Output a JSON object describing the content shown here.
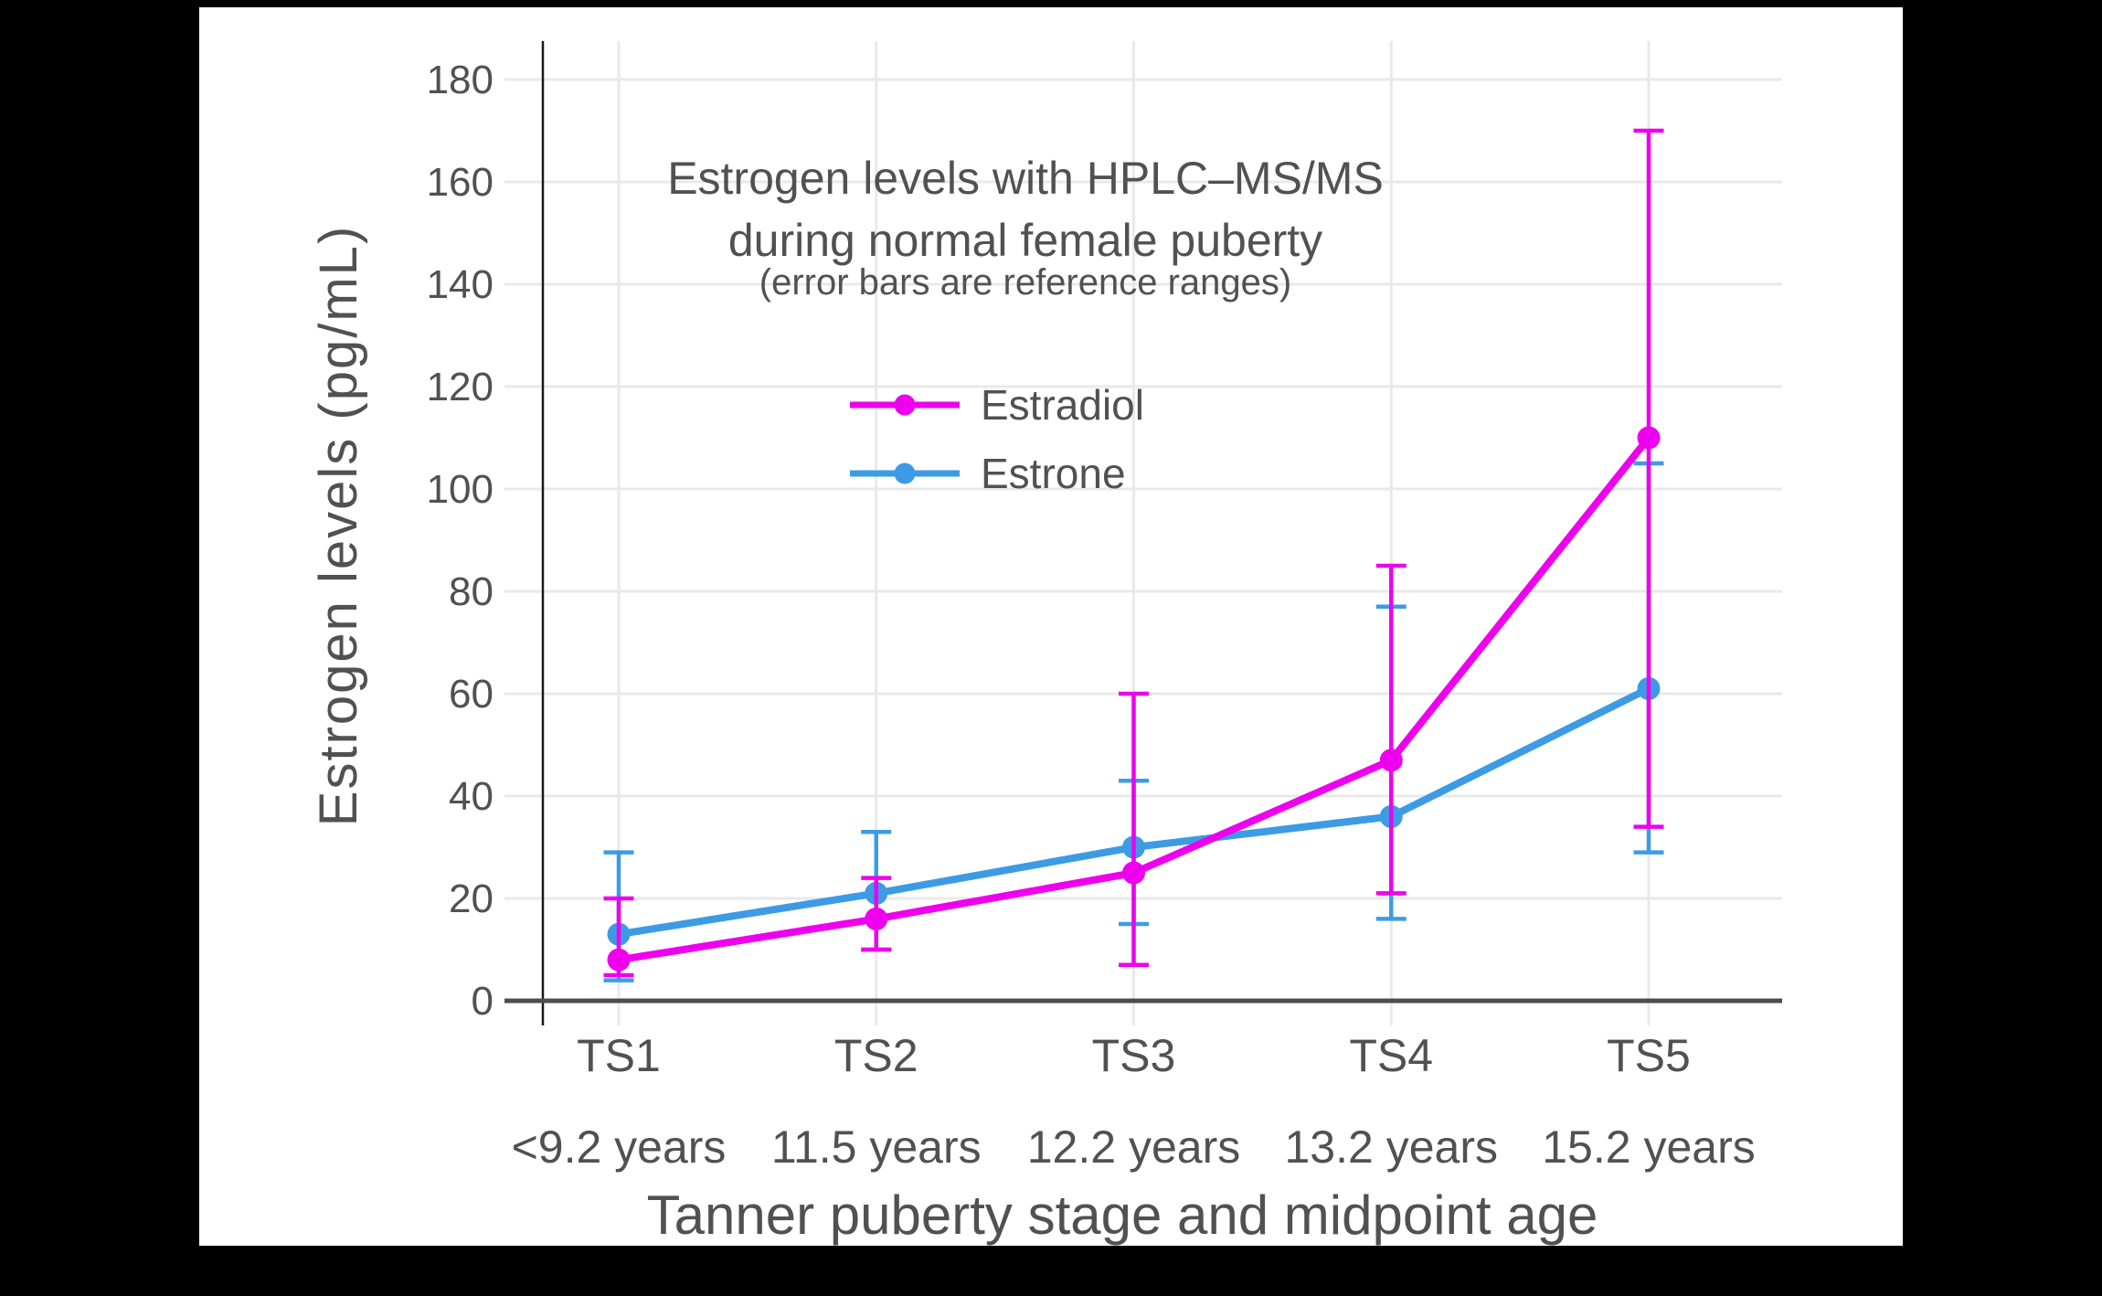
{
  "colors": {
    "background": "#000000",
    "canvas": "#ffffff",
    "text": "#515151",
    "grid": "#e9e9e9",
    "x_axis": "#4d4d4d",
    "y_axis": "#1a1a1a",
    "estradiol": "#EE00EE",
    "estrone": "#3D9BE5"
  },
  "chart_data": {
    "type": "line",
    "title_lines": [
      "Estrogen levels with HPLC–MS/MS",
      "during normal female puberty"
    ],
    "subtitle": "(error bars are reference ranges)",
    "xlabel": "Tanner puberty stage and midpoint age",
    "ylabel": "Estrogen levels (pg/mL)",
    "categories": [
      "TS1",
      "TS2",
      "TS3",
      "TS4",
      "TS5"
    ],
    "category_sublabels": [
      "<9.2 years",
      "11.5 years",
      "12.2 years",
      "13.2 years",
      "15.2 years"
    ],
    "y_ticks": [
      0,
      20,
      40,
      60,
      80,
      100,
      120,
      140,
      160,
      180
    ],
    "ylim": [
      0,
      187
    ],
    "grid": true,
    "legend_position": "inside-upper-left",
    "error_bars_meaning": "reference ranges",
    "series": [
      {
        "name": "Estrone",
        "color": "#3D9BE5",
        "values": [
          13,
          21,
          30,
          36,
          61
        ],
        "err_low": [
          4,
          10,
          15,
          16,
          29
        ],
        "err_high": [
          29,
          33,
          43,
          77,
          105
        ]
      },
      {
        "name": "Estradiol",
        "color": "#EE00EE",
        "values": [
          8,
          16,
          25,
          47,
          110
        ],
        "err_low": [
          5,
          10,
          7,
          21,
          34
        ],
        "err_high": [
          20,
          24,
          60,
          85,
          170
        ]
      }
    ],
    "legend_order": [
      "Estradiol",
      "Estrone"
    ]
  }
}
